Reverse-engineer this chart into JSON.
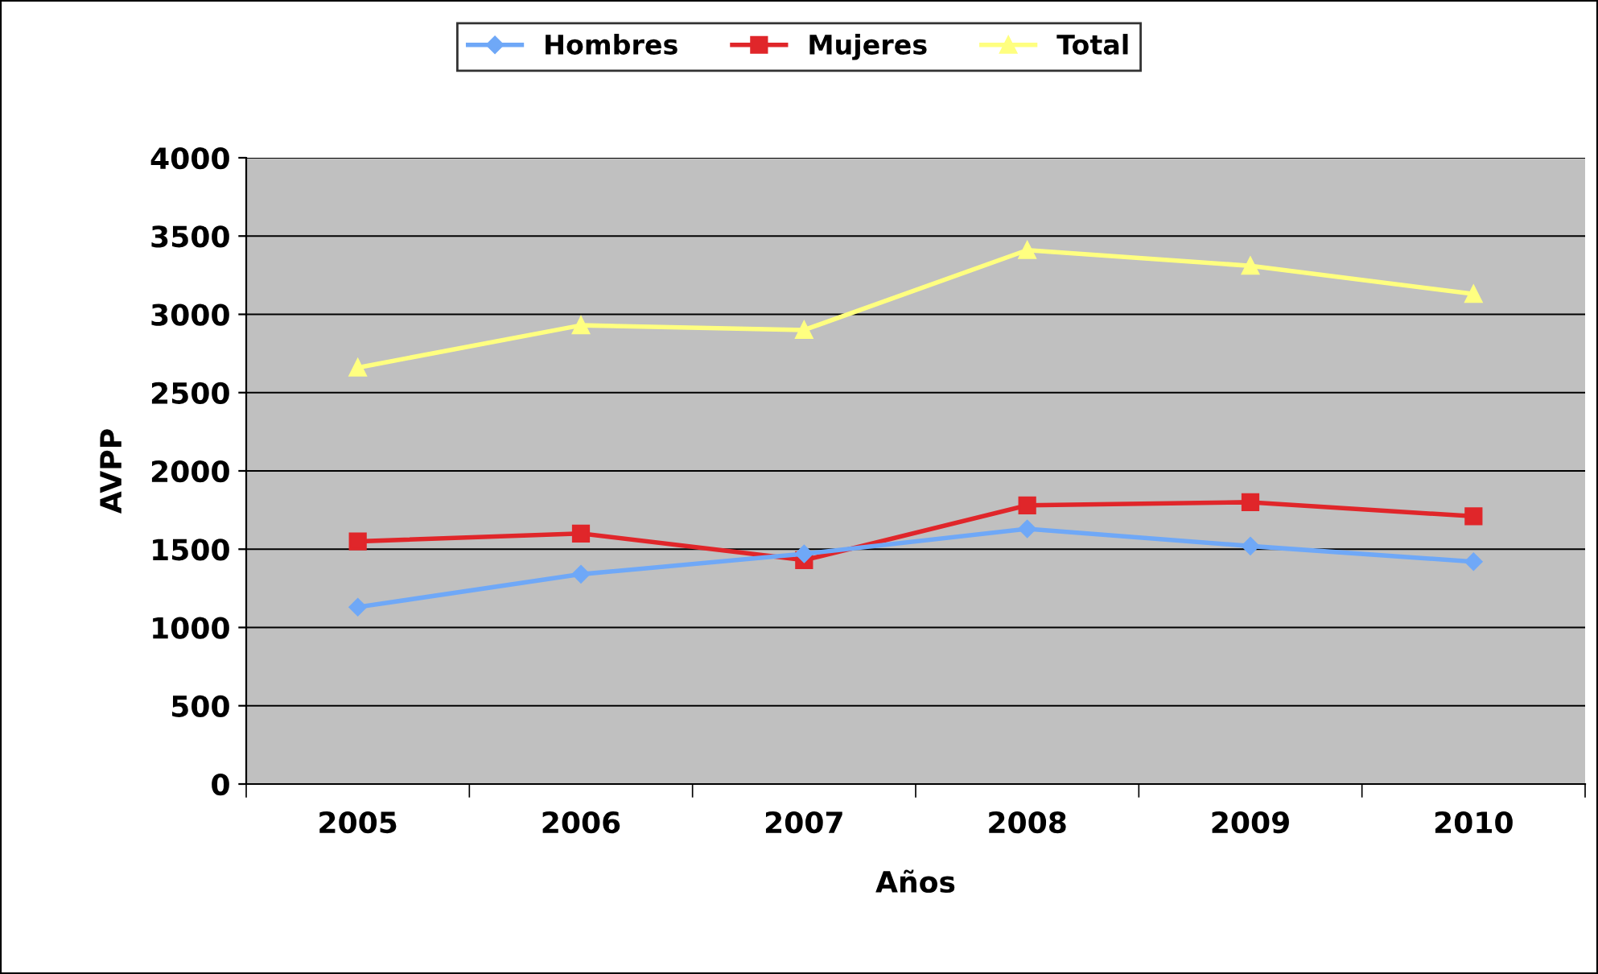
{
  "chart_data": {
    "type": "line",
    "xlabel": "Años",
    "ylabel": "AVPP",
    "categories": [
      "2005",
      "2006",
      "2007",
      "2008",
      "2009",
      "2010"
    ],
    "series": [
      {
        "name": "Hombres",
        "color": "#6fa8f7",
        "marker": "diamond",
        "values": [
          1130,
          1340,
          1470,
          1630,
          1520,
          1420
        ]
      },
      {
        "name": "Mujeres",
        "color": "#e0262a",
        "marker": "square",
        "values": [
          1550,
          1600,
          1430,
          1780,
          1800,
          1710
        ]
      },
      {
        "name": "Total",
        "color": "#ffff80",
        "marker": "triangle",
        "values": [
          2660,
          2930,
          2900,
          3410,
          3310,
          3130
        ]
      }
    ],
    "ylim": [
      0,
      4000
    ],
    "yticks": [
      0,
      500,
      1000,
      1500,
      2000,
      2500,
      3000,
      3500,
      4000
    ],
    "grid": "y",
    "legend": "top"
  }
}
